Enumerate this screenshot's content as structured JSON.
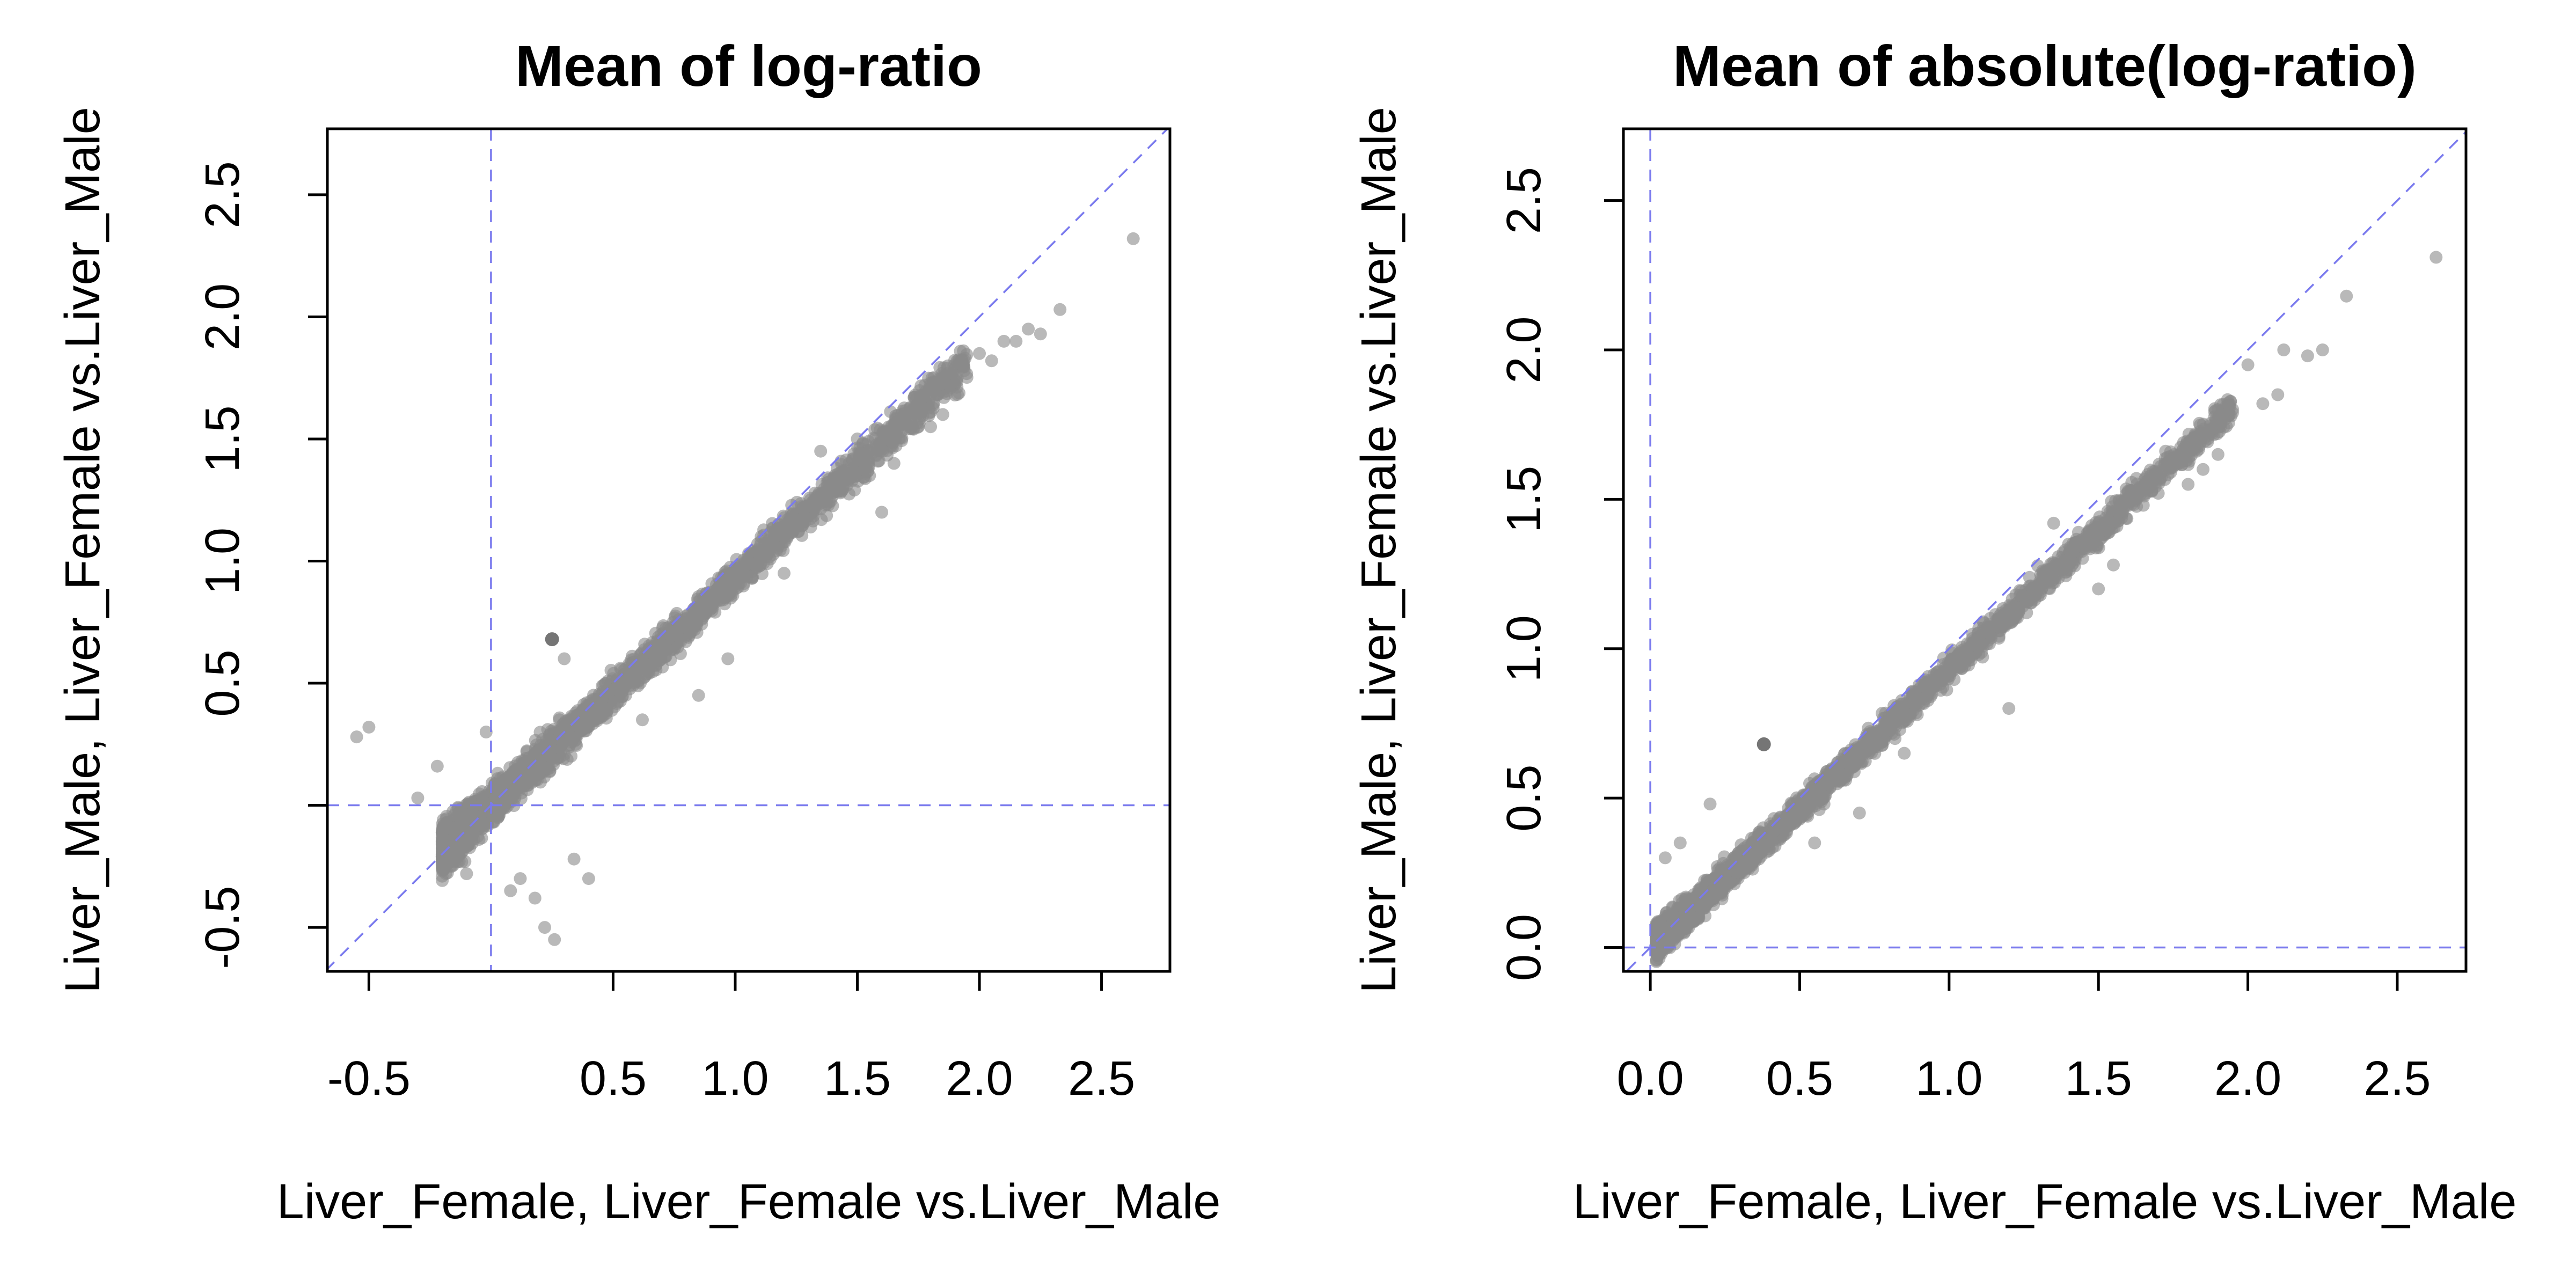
{
  "chart_data": [
    {
      "type": "scatter",
      "title": "Mean of log-ratio",
      "xlabel": "Liver_Female, Liver_Female vs.Liver_Male",
      "ylabel": "Liver_Male, Liver_Female vs.Liver_Male",
      "xlim": [
        -0.67,
        2.78
      ],
      "ylim": [
        -0.68,
        2.77
      ],
      "x_ticks": [
        -0.5,
        0.5,
        1.0,
        1.5,
        2.0,
        2.5
      ],
      "x_tick_labels": [
        "-0.5",
        "0.5",
        "1.0",
        "1.5",
        "2.0",
        "2.5"
      ],
      "y_ticks": [
        -0.5,
        0.0,
        0.5,
        1.0,
        1.5,
        2.0,
        2.5
      ],
      "y_tick_labels": [
        "-0.5",
        "",
        "0.5",
        "1.0",
        "1.5",
        "2.0",
        "2.5"
      ],
      "reference_lines": {
        "vertical": 0,
        "horizontal": 0,
        "diagonal": "y=x"
      },
      "point_color": "#8a8a8a",
      "reference_color": "#7a7aee",
      "grid": false,
      "legend": "none",
      "cloud": {
        "n": 2600,
        "x_range": [
          -0.2,
          1.95
        ],
        "y_slope": 0.93,
        "y_spread": 0.07,
        "seed": 7
      },
      "highlight_points": [
        [
          0.25,
          0.68
        ]
      ],
      "points": [
        [
          -0.55,
          0.28
        ],
        [
          -0.5,
          0.32
        ],
        [
          -0.3,
          0.03
        ],
        [
          -0.22,
          0.16
        ],
        [
          -0.1,
          -0.28
        ],
        [
          -0.02,
          0.3
        ],
        [
          0.12,
          -0.3
        ],
        [
          0.18,
          -0.38
        ],
        [
          0.22,
          -0.5
        ],
        [
          0.26,
          -0.55
        ],
        [
          0.34,
          -0.22
        ],
        [
          0.4,
          -0.3
        ],
        [
          0.08,
          -0.35
        ],
        [
          0.28,
          0.35
        ],
        [
          0.3,
          0.6
        ],
        [
          0.62,
          0.35
        ],
        [
          0.85,
          0.45
        ],
        [
          0.97,
          0.6
        ],
        [
          1.2,
          0.95
        ],
        [
          1.35,
          1.45
        ],
        [
          1.5,
          1.5
        ],
        [
          1.55,
          1.35
        ],
        [
          1.6,
          1.2
        ],
        [
          1.65,
          1.4
        ],
        [
          1.75,
          1.55
        ],
        [
          1.8,
          1.55
        ],
        [
          1.85,
          1.6
        ],
        [
          1.9,
          1.68
        ],
        [
          2.0,
          1.85
        ],
        [
          2.05,
          1.82
        ],
        [
          2.1,
          1.9
        ],
        [
          2.15,
          1.9
        ],
        [
          2.2,
          1.95
        ],
        [
          2.25,
          1.93
        ],
        [
          2.33,
          2.03
        ],
        [
          2.63,
          2.32
        ]
      ]
    },
    {
      "type": "scatter",
      "title": "Mean of absolute(log-ratio)",
      "xlabel": "Liver_Female, Liver_Female vs.Liver_Male",
      "ylabel": "Liver_Male, Liver_Female vs.Liver_Male",
      "xlim": [
        -0.09,
        2.73
      ],
      "ylim": [
        -0.08,
        2.74
      ],
      "x_ticks": [
        0.0,
        0.5,
        1.0,
        1.5,
        2.0,
        2.5
      ],
      "x_tick_labels": [
        "0.0",
        "0.5",
        "1.0",
        "1.5",
        "2.0",
        "2.5"
      ],
      "y_ticks": [
        0.0,
        0.5,
        1.0,
        1.5,
        2.0,
        2.5
      ],
      "y_tick_labels": [
        "0.0",
        "0.5",
        "1.0",
        "1.5",
        "2.0",
        "2.5"
      ],
      "reference_lines": {
        "vertical": 0,
        "horizontal": 0,
        "diagonal": "y=x"
      },
      "point_color": "#8a8a8a",
      "reference_color": "#7a7aee",
      "grid": false,
      "legend": "none",
      "cloud": {
        "n": 2600,
        "x_range": [
          0.02,
          1.95
        ],
        "y_slope": 0.93,
        "y_spread": 0.045,
        "seed": 11
      },
      "highlight_points": [
        [
          0.38,
          0.68
        ]
      ],
      "points": [
        [
          0.05,
          0.3
        ],
        [
          0.1,
          0.35
        ],
        [
          0.2,
          0.48
        ],
        [
          0.55,
          0.35
        ],
        [
          0.7,
          0.45
        ],
        [
          0.85,
          0.65
        ],
        [
          1.2,
          0.8
        ],
        [
          1.35,
          1.42
        ],
        [
          1.4,
          1.35
        ],
        [
          1.5,
          1.2
        ],
        [
          1.55,
          1.28
        ],
        [
          1.65,
          1.48
        ],
        [
          1.7,
          1.52
        ],
        [
          1.8,
          1.55
        ],
        [
          1.85,
          1.6
        ],
        [
          1.9,
          1.65
        ],
        [
          2.0,
          1.95
        ],
        [
          2.05,
          1.82
        ],
        [
          2.1,
          1.85
        ],
        [
          2.12,
          2.0
        ],
        [
          2.2,
          1.98
        ],
        [
          2.25,
          2.0
        ],
        [
          2.33,
          2.18
        ],
        [
          2.63,
          2.31
        ]
      ]
    }
  ]
}
